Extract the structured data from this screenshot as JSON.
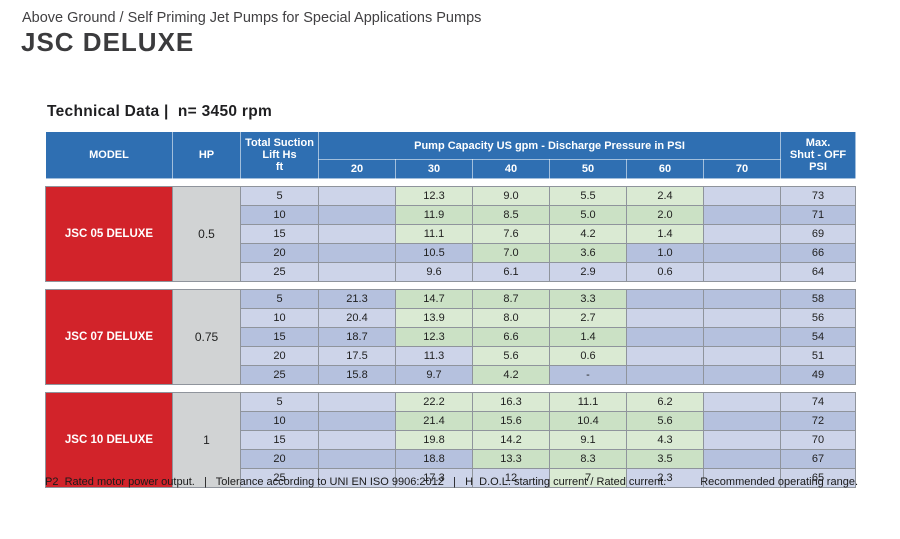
{
  "page": {
    "supertitle": "Above Ground / Self Priming Jet Pumps for Special Applications Pumps",
    "title": "JSC DELUXE",
    "section_title": "Technical Data |  n= 3450 rpm"
  },
  "table": {
    "headers": {
      "model": "MODEL",
      "hp": "HP",
      "lift_lines": [
        "Total Suction",
        "Lift Hs",
        "ft"
      ],
      "capacity": "Pump Capacity US gpm - Discharge Pressure in PSI",
      "pressures": [
        "20",
        "30",
        "40",
        "50",
        "60",
        "70"
      ],
      "max_lines": [
        "Max.",
        "Shut - OFF",
        "PSI"
      ]
    },
    "groups": [
      {
        "model": "JSC 05 DELUXE",
        "hp": "0.5",
        "rows": [
          {
            "lift": "5",
            "values": [
              "",
              "12.3",
              "9.0",
              "5.5",
              "2.4",
              ""
            ],
            "green": [
              false,
              true,
              true,
              true,
              true,
              false
            ],
            "max": "73"
          },
          {
            "lift": "10",
            "values": [
              "",
              "11.9",
              "8.5",
              "5.0",
              "2.0",
              ""
            ],
            "green": [
              false,
              true,
              true,
              true,
              true,
              false
            ],
            "max": "71"
          },
          {
            "lift": "15",
            "values": [
              "",
              "11.1",
              "7.6",
              "4.2",
              "1.4",
              ""
            ],
            "green": [
              false,
              true,
              true,
              true,
              true,
              false
            ],
            "max": "69"
          },
          {
            "lift": "20",
            "values": [
              "",
              "10.5",
              "7.0",
              "3.6",
              "1.0",
              ""
            ],
            "green": [
              false,
              false,
              true,
              true,
              false,
              false
            ],
            "max": "66"
          },
          {
            "lift": "25",
            "values": [
              "",
              "9.6",
              "6.1",
              "2.9",
              "0.6",
              ""
            ],
            "green": [
              false,
              false,
              false,
              false,
              false,
              false
            ],
            "max": "64"
          }
        ]
      },
      {
        "model": "JSC 07 DELUXE",
        "hp": "0.75",
        "rows": [
          {
            "lift": "5",
            "values": [
              "21.3",
              "14.7",
              "8.7",
              "3.3",
              "",
              ""
            ],
            "green": [
              false,
              true,
              true,
              true,
              false,
              false
            ],
            "max": "58"
          },
          {
            "lift": "10",
            "values": [
              "20.4",
              "13.9",
              "8.0",
              "2.7",
              "",
              ""
            ],
            "green": [
              false,
              true,
              true,
              true,
              false,
              false
            ],
            "max": "56"
          },
          {
            "lift": "15",
            "values": [
              "18.7",
              "12.3",
              "6.6",
              "1.4",
              "",
              ""
            ],
            "green": [
              false,
              true,
              true,
              true,
              false,
              false
            ],
            "max": "54"
          },
          {
            "lift": "20",
            "values": [
              "17.5",
              "11.3",
              "5.6",
              "0.6",
              "",
              ""
            ],
            "green": [
              false,
              false,
              true,
              true,
              false,
              false
            ],
            "max": "51"
          },
          {
            "lift": "25",
            "values": [
              "15.8",
              "9.7",
              "4.2",
              "-",
              "",
              ""
            ],
            "green": [
              false,
              false,
              true,
              false,
              false,
              false
            ],
            "max": "49"
          }
        ]
      },
      {
        "model": "JSC 10 DELUXE",
        "hp": "1",
        "rows": [
          {
            "lift": "5",
            "values": [
              "",
              "22.2",
              "16.3",
              "11.1",
              "6.2",
              ""
            ],
            "green": [
              false,
              true,
              true,
              true,
              true,
              false
            ],
            "max": "74"
          },
          {
            "lift": "10",
            "values": [
              "",
              "21.4",
              "15.6",
              "10.4",
              "5.6",
              ""
            ],
            "green": [
              false,
              true,
              true,
              true,
              true,
              false
            ],
            "max": "72"
          },
          {
            "lift": "15",
            "values": [
              "",
              "19.8",
              "14.2",
              "9.1",
              "4.3",
              ""
            ],
            "green": [
              false,
              true,
              true,
              true,
              true,
              false
            ],
            "max": "70"
          },
          {
            "lift": "20",
            "values": [
              "",
              "18.8",
              "13.3",
              "8.3",
              "3.5",
              ""
            ],
            "green": [
              false,
              false,
              true,
              true,
              true,
              false
            ],
            "max": "67"
          },
          {
            "lift": "25",
            "values": [
              "",
              "17.3",
              "12",
              "7",
              "2.3",
              ""
            ],
            "green": [
              false,
              false,
              false,
              true,
              false,
              false
            ],
            "max": "65"
          }
        ]
      }
    ]
  },
  "footer": {
    "left": "P2  Rated motor power output.   |   Tolerance according to UNI EN ISO 9906:2012   |   H  D.O.L. starting current / Rated current.",
    "right": "Recommended operating range."
  },
  "colors": {
    "header_blue": "#2F6FB2",
    "model_red": "#D2232A",
    "hp_gray": "#D1D3D4",
    "row_light": "#CDD4E9",
    "row_dark": "#B5C1DE",
    "range_green_light": "#DAEAD3",
    "range_green_dark": "#CBE1C5"
  }
}
